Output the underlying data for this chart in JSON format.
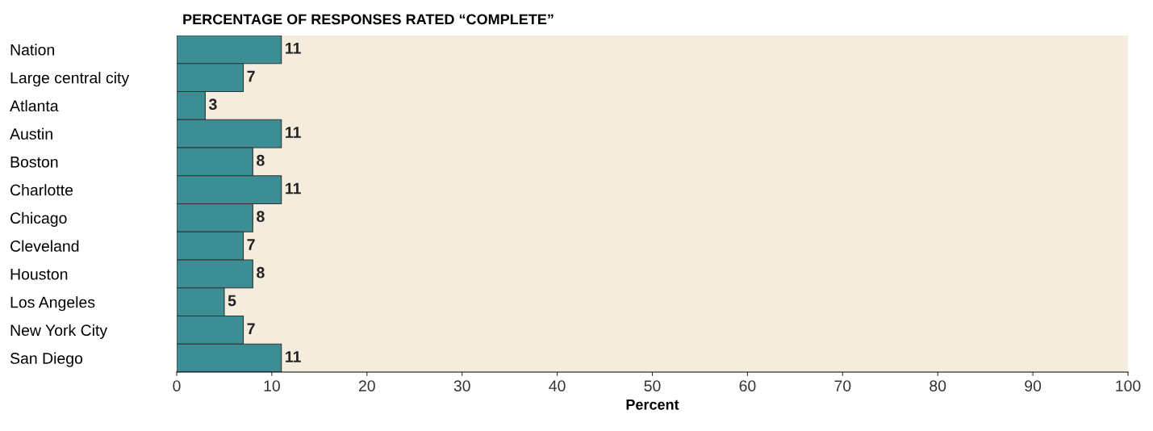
{
  "chart_data": {
    "type": "bar",
    "orientation": "horizontal",
    "title": "PERCENTAGE OF RESPONSES RATED “COMPLETE”",
    "xlabel": "Percent",
    "categories": [
      "Nation",
      "Large central city",
      "Atlanta",
      "Austin",
      "Boston",
      "Charlotte",
      "Chicago",
      "Cleveland",
      "Houston",
      "Los Angeles",
      "New York City",
      "San Diego"
    ],
    "values": [
      11,
      7,
      3,
      11,
      8,
      11,
      8,
      7,
      8,
      5,
      7,
      11
    ],
    "color": "#3d8e94",
    "data_labels": true,
    "xlim": [
      0,
      100
    ],
    "xticks": [
      0,
      10,
      20,
      30,
      40,
      50,
      60,
      70,
      80,
      90,
      100
    ],
    "grid": false,
    "legend": false
  }
}
